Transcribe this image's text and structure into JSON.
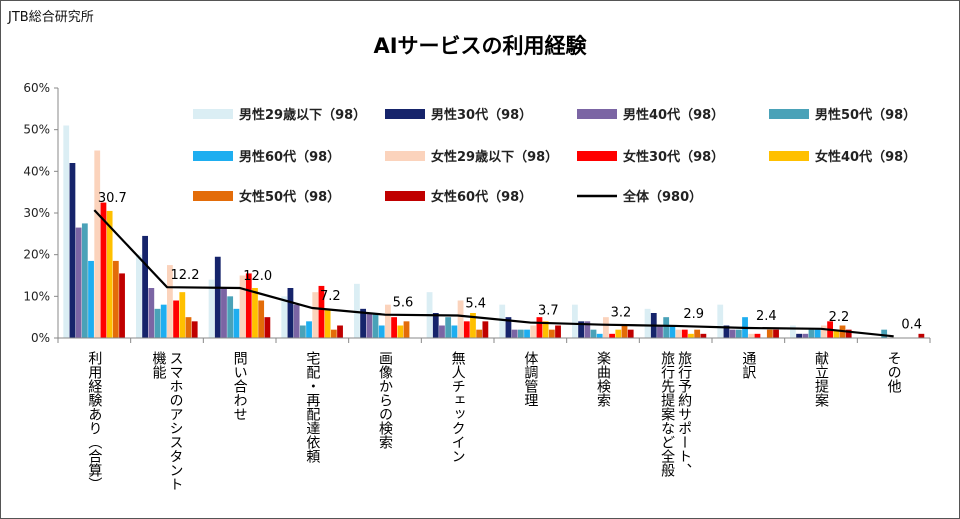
{
  "source_label": "JTB総合研究所",
  "chart_data": {
    "type": "bar",
    "title": "AIサービスの利用経験",
    "ylim": [
      0,
      60
    ],
    "y_ticks": [
      "0%",
      "10%",
      "20%",
      "30%",
      "40%",
      "50%",
      "60%"
    ],
    "categories": [
      [
        "利用経験あり（合算）"
      ],
      [
        "スマホのアシスタント",
        "機能"
      ],
      [
        "問い合わせ"
      ],
      [
        "宅配・再配達依頼"
      ],
      [
        "画像からの検索"
      ],
      [
        "無人チェックイン"
      ],
      [
        "体調管理"
      ],
      [
        "楽曲検索"
      ],
      [
        "旅行予約サポート、",
        "旅行先提案など全般"
      ],
      [
        "通訳"
      ],
      [
        "献立提案"
      ],
      [
        "その他"
      ]
    ],
    "series": [
      {
        "name": "男性29歳以下（98）",
        "color": "#dbeef4",
        "values": [
          51,
          20,
          14,
          10,
          13,
          11,
          8,
          8,
          7,
          8,
          3,
          0
        ]
      },
      {
        "name": "男性30代（98）",
        "color": "#16246b",
        "values": [
          42,
          24.5,
          19.5,
          12,
          7,
          6,
          5,
          4,
          6,
          3,
          1,
          0
        ]
      },
      {
        "name": "男性40代（98）",
        "color": "#7b65a4",
        "values": [
          26.5,
          12,
          12,
          8,
          6,
          3,
          2,
          4,
          3,
          2,
          1,
          0
        ]
      },
      {
        "name": "男性50代（98）",
        "color": "#4aa2b8",
        "values": [
          27.5,
          7,
          10,
          3,
          6,
          5,
          2,
          2,
          5,
          2,
          2,
          2
        ]
      },
      {
        "name": "男性60代（98）",
        "color": "#1eaef0",
        "values": [
          18.5,
          8,
          7,
          4,
          3,
          3,
          2,
          1,
          3,
          5,
          2,
          0
        ]
      },
      {
        "name": "女性29歳以下（98）",
        "color": "#fbd3bc",
        "values": [
          45,
          17.5,
          15,
          11,
          8,
          9,
          3,
          5,
          2,
          1,
          3,
          0
        ]
      },
      {
        "name": "女性30代（98）",
        "color": "#ff0000",
        "values": [
          32.5,
          9,
          15.5,
          12.5,
          5,
          4,
          5,
          1,
          2,
          1,
          4,
          0
        ]
      },
      {
        "name": "女性40代（98）",
        "color": "#ffc000",
        "values": [
          30.5,
          11,
          12,
          7,
          3,
          6,
          4,
          2,
          1,
          0,
          2,
          0
        ]
      },
      {
        "name": "女性50代（98）",
        "color": "#e36c09",
        "values": [
          18.5,
          5,
          9,
          2,
          4,
          2,
          2,
          3,
          2,
          2,
          3,
          0
        ]
      },
      {
        "name": "女性60代（98）",
        "color": "#c00000",
        "values": [
          15.5,
          4,
          5,
          3,
          0,
          4,
          3,
          2,
          1,
          2,
          2,
          1
        ]
      }
    ],
    "total_line": {
      "name": "全体（980）",
      "color": "#000000",
      "values": [
        30.7,
        12.2,
        12.0,
        7.2,
        5.6,
        5.4,
        3.7,
        3.2,
        2.9,
        2.4,
        2.2,
        0.4
      ],
      "labels": [
        "30.7",
        "12.2",
        "12.0",
        "7.2",
        "5.6",
        "5.4",
        "3.7",
        "3.2",
        "2.9",
        "2.4",
        "2.2",
        "0.4"
      ]
    },
    "legend_placement": "top-right"
  }
}
